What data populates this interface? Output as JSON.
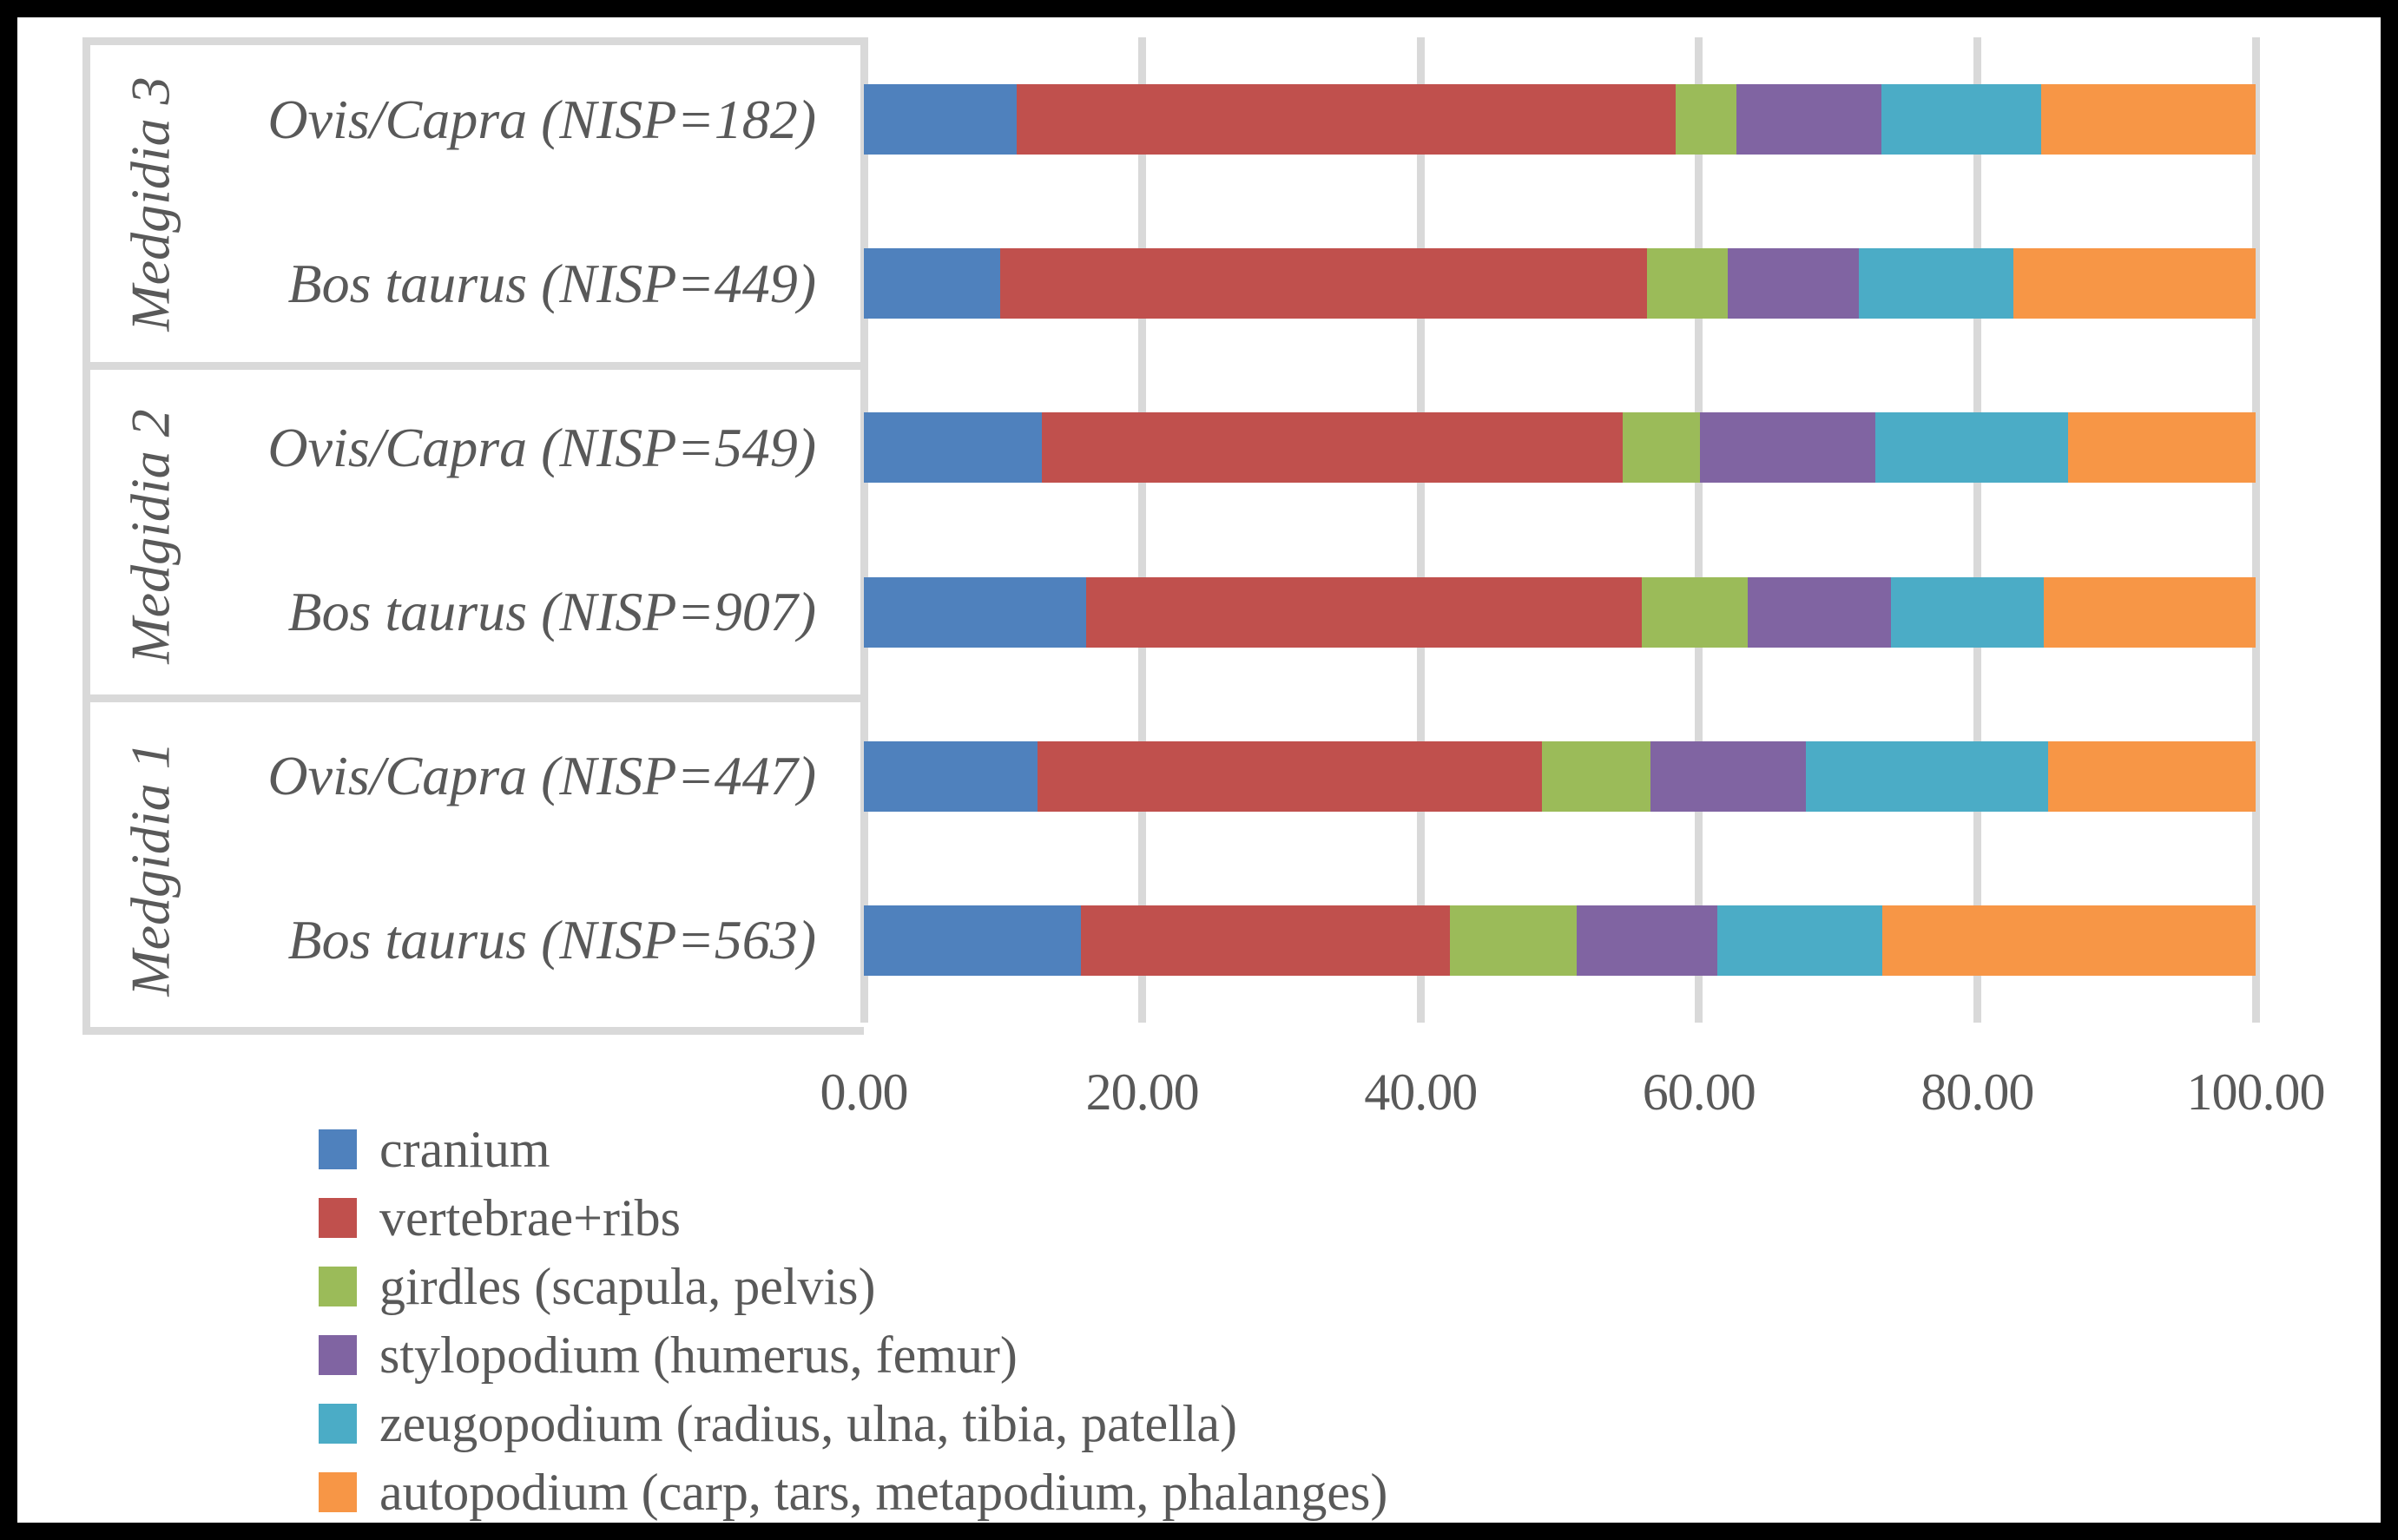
{
  "chart_data": {
    "type": "bar",
    "variant": "horizontal-stacked-100pct",
    "title": "",
    "xlabel": "",
    "ylabel": "",
    "xlim": [
      0,
      100
    ],
    "grid": true,
    "legend_position": "bottom-left",
    "axis": {
      "tick_values": [
        0,
        20,
        40,
        60,
        80,
        100
      ],
      "tick_labels": [
        "0.00",
        "20.00",
        "40.00",
        "60.00",
        "80.00",
        "100.00"
      ]
    },
    "groups": [
      {
        "label": "Medgidia 3",
        "rows": [
          0,
          1
        ]
      },
      {
        "label": "Medgidia 2",
        "rows": [
          2,
          3
        ]
      },
      {
        "label": "Medgidia 1",
        "rows": [
          4,
          5
        ]
      }
    ],
    "categories": [
      "Ovis/Capra (NISP=182)",
      "Bos taurus (NISP=449)",
      "Ovis/Capra (NISP=549)",
      "Bos taurus (NISP=907)",
      "Ovis/Capra (NISP=447)",
      "Bos taurus (NISP=563)"
    ],
    "series": [
      {
        "name": "cranium",
        "color": "#4F81BD",
        "values": [
          11.0,
          9.8,
          12.8,
          16.0,
          12.5,
          15.6
        ]
      },
      {
        "name": "vertebrae+ribs",
        "color": "#C0504D",
        "values": [
          47.3,
          46.5,
          41.7,
          39.9,
          36.2,
          26.5
        ]
      },
      {
        "name": "girdles (scapula, pelvis)",
        "color": "#9BBB59",
        "values": [
          4.4,
          5.8,
          5.6,
          7.6,
          7.8,
          9.1
        ]
      },
      {
        "name": "stylopodium (humerus, femur)",
        "color": "#8064A2",
        "values": [
          10.4,
          9.4,
          12.6,
          10.3,
          11.2,
          10.1
        ]
      },
      {
        "name": "zeugopodium (radius, ulna, tibia, patella)",
        "color": "#4BACC6",
        "values": [
          11.5,
          11.1,
          13.8,
          11.0,
          17.4,
          11.9
        ]
      },
      {
        "name": "autopodium (carp, tars, metapodium, phalanges)",
        "color": "#F79646",
        "values": [
          15.4,
          17.4,
          13.5,
          15.2,
          14.9,
          26.8
        ]
      }
    ],
    "colors": {
      "gridline": "#D9D9D9",
      "panel_border": "#D9D9D9",
      "text": "#595959",
      "frame_border": "#000000",
      "background": "#FFFFFF"
    }
  }
}
